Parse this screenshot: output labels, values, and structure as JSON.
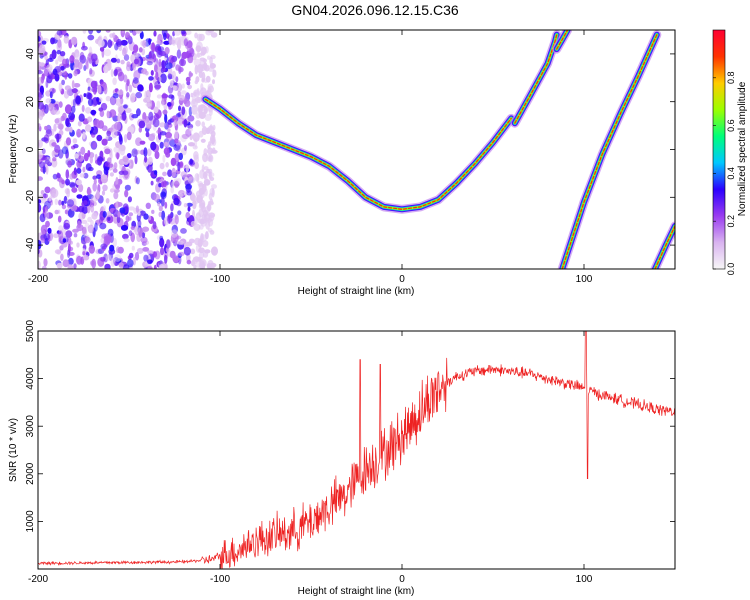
{
  "title": "GN04.2026.096.12.15.C36",
  "colors": {
    "snr_line": "#ee2222",
    "axis": "#000000"
  },
  "chart_data": [
    {
      "type": "heatmap",
      "name": "spectrogram",
      "xlabel": "Height of straight line (km)",
      "ylabel": "Frequency (Hz)",
      "xlim": [
        -200,
        150
      ],
      "ylim": [
        -50,
        50
      ],
      "xticks": [
        -200,
        -100,
        0,
        100
      ],
      "yticks": [
        -40,
        -20,
        0,
        20,
        40
      ],
      "colorbar": {
        "label": "Normalized spectral amplitude",
        "range": [
          0,
          1
        ],
        "ticks": [
          "0.0",
          "0.2",
          "0.4",
          "0.6",
          "0.8"
        ],
        "stops": [
          "#f7f7f7",
          "#d9b3f0",
          "#9a3cf0",
          "#2b00ff",
          "#00c8ff",
          "#00ff7a",
          "#9cff00",
          "#ffcc00",
          "#ff3300",
          "#ff0033"
        ]
      },
      "noise_region": {
        "x": [
          -200,
          -107
        ],
        "y": [
          -50,
          50
        ]
      },
      "curves": [
        {
          "name": "main-chirp",
          "x": [
            -108,
            -100,
            -90,
            -80,
            -70,
            -60,
            -50,
            -40,
            -30,
            -20,
            -10,
            0,
            10,
            20,
            30,
            40,
            50,
            60
          ],
          "y": [
            21,
            17,
            11,
            6,
            3,
            0,
            -3,
            -7,
            -13,
            -20,
            -24,
            -25,
            -24,
            -21,
            -14,
            -6,
            3,
            13
          ]
        },
        {
          "name": "branch-upper",
          "x": [
            62,
            70,
            80,
            84,
            85
          ],
          "y": [
            11,
            22,
            36,
            45,
            48
          ]
        },
        {
          "name": "branch-top",
          "x": [
            85,
            88,
            91
          ],
          "y": [
            42,
            46,
            50
          ]
        },
        {
          "name": "diagonal-line",
          "x": [
            88,
            100,
            110,
            120,
            130,
            140
          ],
          "y": [
            -50,
            -22,
            -2,
            15,
            31,
            48
          ]
        },
        {
          "name": "corner-line",
          "x": [
            139,
            145,
            150
          ],
          "y": [
            -50,
            -40,
            -32
          ]
        }
      ]
    },
    {
      "type": "line",
      "name": "snr",
      "xlabel": "Height of straight line (km)",
      "ylabel": "SNR (10 * v/v)",
      "xlim": [
        -200,
        150
      ],
      "ylim": [
        0,
        5000
      ],
      "xticks": [
        -200,
        -100,
        0,
        100
      ],
      "yticks": [
        1000,
        2000,
        3000,
        4000,
        5000
      ],
      "envelope": {
        "x": [
          -200,
          -120,
          -105,
          -90,
          -80,
          -70,
          -60,
          -50,
          -40,
          -30,
          -20,
          -10,
          0,
          10,
          20,
          30,
          40,
          50,
          60,
          70,
          80,
          90,
          100,
          110,
          120,
          130,
          140,
          150
        ],
        "y": [
          120,
          150,
          200,
          400,
          600,
          700,
          800,
          1000,
          1300,
          1600,
          2100,
          2400,
          2800,
          3300,
          3800,
          4050,
          4150,
          4200,
          4150,
          4100,
          4000,
          3900,
          3800,
          3650,
          3550,
          3450,
          3350,
          3300
        ]
      },
      "spikes": [
        {
          "x": -23,
          "y": 4400
        },
        {
          "x": -12,
          "y": 4300
        },
        {
          "x": 101,
          "y": 5000
        },
        {
          "x": 102,
          "y": 1900
        }
      ]
    }
  ]
}
